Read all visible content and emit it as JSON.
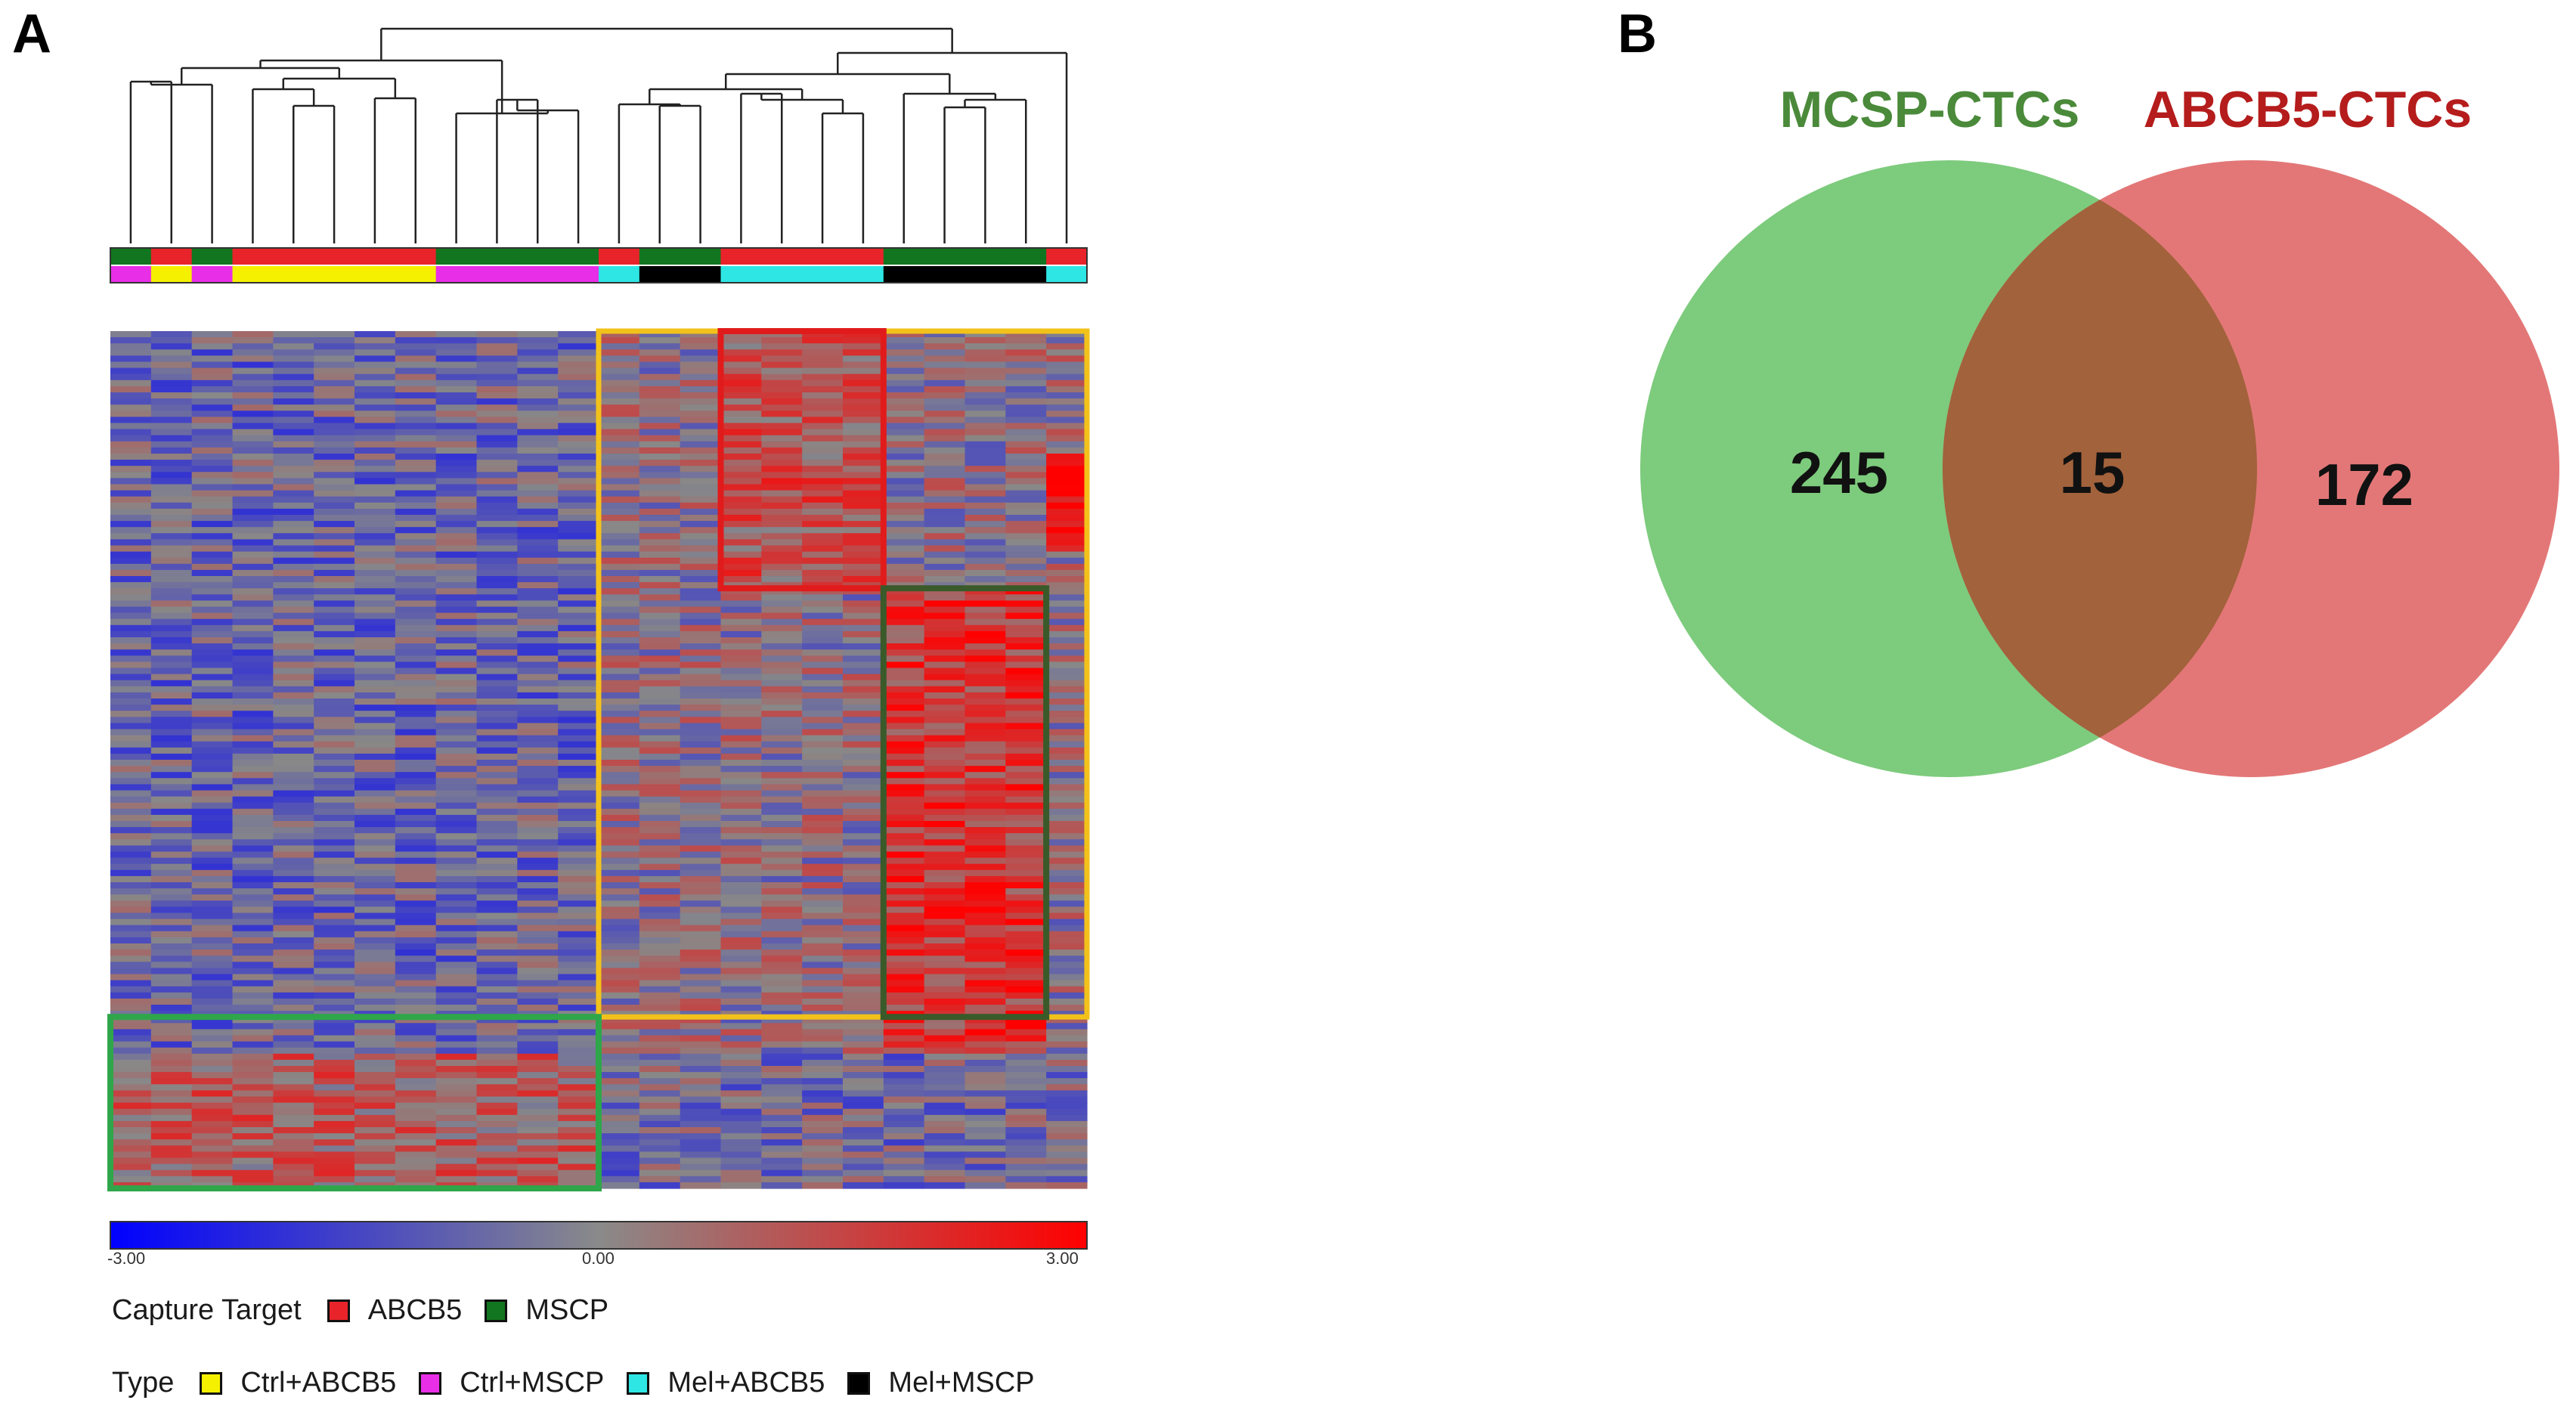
{
  "panels": {
    "a": "A",
    "b": "B"
  },
  "chart_data": [
    {
      "type": "heatmap",
      "title": "",
      "color_scale": {
        "min": "-3.00",
        "mid": "0.00",
        "max": "3.00",
        "colors": [
          "#0000ff",
          "#888888",
          "#ff0000"
        ]
      },
      "samples": 24,
      "clusters_top": {
        "capture_target": [
          "MSCP",
          "ABCB5",
          "MSCP",
          "ABCB5",
          "ABCB5",
          "ABCB5",
          "ABCB5",
          "ABCB5",
          "MSCP",
          "MSCP",
          "MSCP",
          "MSCP",
          "ABCB5",
          "MSCP",
          "MSCP",
          "ABCB5",
          "ABCB5",
          "ABCB5",
          "ABCB5",
          "MSCP",
          "MSCP",
          "MSCP",
          "MSCP",
          "ABCB5"
        ],
        "type": [
          "Ctrl+MSCP",
          "Ctrl+ABCB5",
          "Ctrl+MSCP",
          "Ctrl+ABCB5",
          "Ctrl+ABCB5",
          "Ctrl+ABCB5",
          "Ctrl+ABCB5",
          "Ctrl+ABCB5",
          "Ctrl+MSCP",
          "Ctrl+MSCP",
          "Ctrl+MSCP",
          "Ctrl+MSCP",
          "Mel+ABCB5",
          "Mel+MSCP",
          "Mel+MSCP",
          "Mel+ABCB5",
          "Mel+ABCB5",
          "Mel+ABCB5",
          "Mel+ABCB5",
          "Mel+MSCP",
          "Mel+MSCP",
          "Mel+MSCP",
          "Mel+MSCP",
          "Mel+ABCB5"
        ]
      },
      "legend": {
        "capture_target_title": "Capture Target",
        "capture_target": [
          "ABCB5",
          "MSCP"
        ],
        "type_title": "Type",
        "type": [
          "Ctrl+ABCB5",
          "Ctrl+MSCP",
          "Mel+ABCB5",
          "Mel+MSCP"
        ]
      },
      "colors": {
        "ABCB5": "#e8242a",
        "MSCP": "#12751f",
        "Ctrl+ABCB5": "#f5f000",
        "Ctrl+MSCP": "#e82ee6",
        "Mel+ABCB5": "#2ee6e4",
        "Mel+MSCP": "#000000"
      }
    },
    {
      "type": "venn",
      "sets": [
        {
          "name": "MCSP-CTCs",
          "only": 245,
          "color": "#5cbd5c",
          "label_color": "#4a8a3a"
        },
        {
          "name": "ABCB5-CTCs",
          "only": 172,
          "color": "#e05a5a",
          "label_color": "#b51c1c"
        }
      ],
      "intersection": 15,
      "intersection_color": "#a0603a"
    }
  ]
}
